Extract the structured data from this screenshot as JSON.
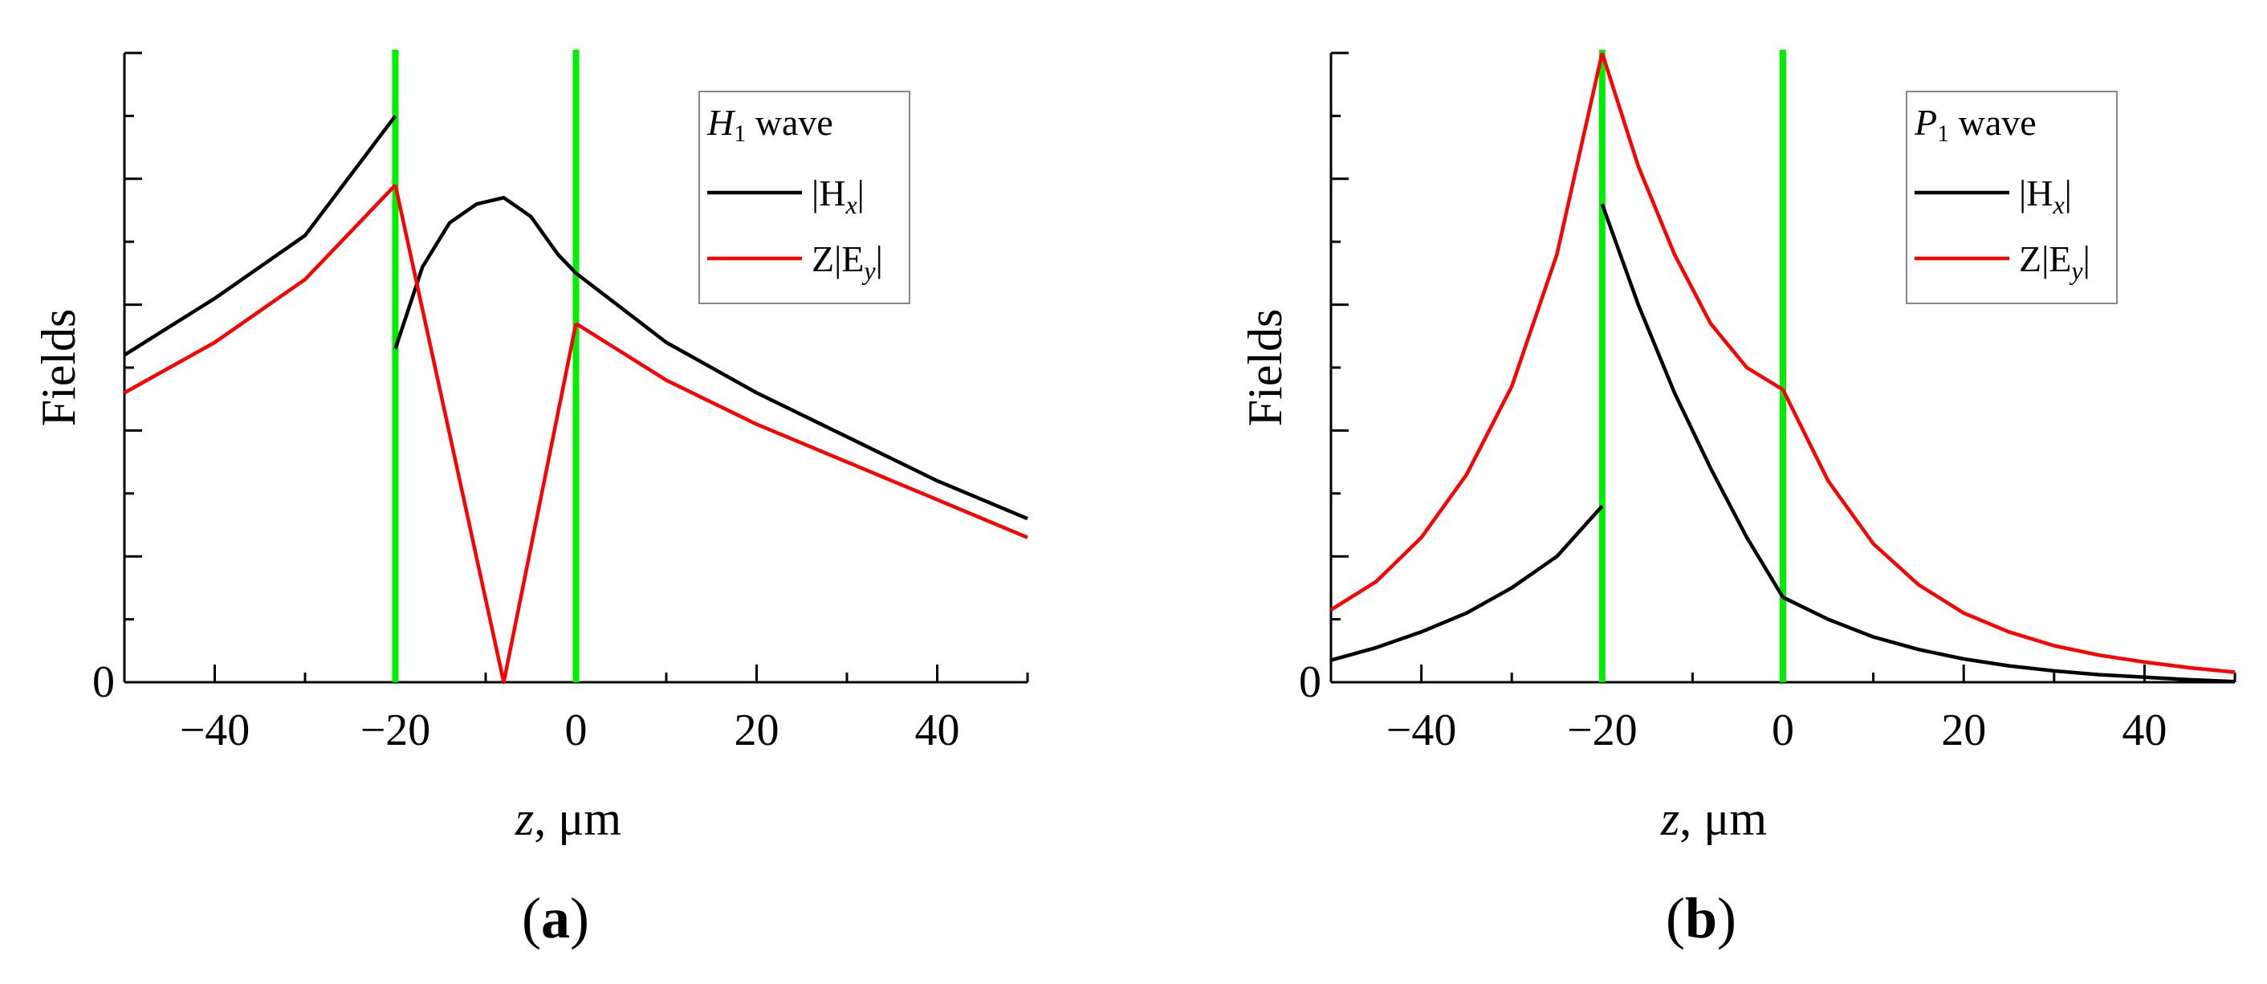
{
  "chart_data": [
    {
      "type": "line",
      "panel_label": "(a)",
      "panel_letter": "a",
      "xlabel_var": "z",
      "xlabel_unit": ", μm",
      "ylabel": "Fields",
      "xlim": [
        -50,
        50
      ],
      "ylim": [
        0,
        1
      ],
      "x_ticks": [
        -40,
        -20,
        0,
        20,
        40
      ],
      "x_tick_labels": [
        "−40",
        "−20",
        "0",
        "20",
        "40"
      ],
      "y_tick_labels": [
        "0"
      ],
      "legend": {
        "title_var": "H",
        "title_sub": "1",
        "title_rest": " wave",
        "position": "top-right",
        "entries": [
          {
            "pre": "|H",
            "sub": "x",
            "post": "|"
          },
          {
            "pre": "Z|E",
            "sub": "y",
            "post": "|"
          }
        ]
      },
      "interfaces": [
        -20,
        0
      ],
      "series": [
        {
          "name": "|Hx|",
          "color": "#000000",
          "segments": [
            {
              "x": [
                -50,
                -40,
                -30,
                -20
              ],
              "y": [
                0.52,
                0.61,
                0.71,
                0.9
              ]
            },
            {
              "x": [
                -20,
                -17,
                -14,
                -11,
                -8,
                -5,
                -2,
                0
              ],
              "y": [
                0.53,
                0.66,
                0.73,
                0.76,
                0.77,
                0.74,
                0.68,
                0.65
              ]
            },
            {
              "x": [
                0,
                10,
                20,
                30,
                40,
                50
              ],
              "y": [
                0.65,
                0.54,
                0.46,
                0.39,
                0.32,
                0.26
              ]
            }
          ]
        },
        {
          "name": "Z|Ey|",
          "color": "#ff0000",
          "segments": [
            {
              "x": [
                -50,
                -40,
                -30,
                -20
              ],
              "y": [
                0.46,
                0.54,
                0.64,
                0.79
              ]
            },
            {
              "x": [
                -20,
                -8,
                0
              ],
              "y": [
                0.79,
                0,
                0.57
              ]
            },
            {
              "x": [
                0,
                10,
                20,
                30,
                40,
                50
              ],
              "y": [
                0.57,
                0.48,
                0.41,
                0.35,
                0.29,
                0.23
              ]
            }
          ]
        }
      ]
    },
    {
      "type": "line",
      "panel_label": "(b)",
      "panel_letter": "b",
      "xlabel_var": "z",
      "xlabel_unit": ", μm",
      "ylabel": "Fields",
      "xlim": [
        -50,
        50
      ],
      "ylim": [
        0,
        1
      ],
      "x_ticks": [
        -40,
        -20,
        0,
        20,
        40
      ],
      "x_tick_labels": [
        "−40",
        "−20",
        "0",
        "20",
        "40"
      ],
      "y_tick_labels": [
        "0"
      ],
      "legend": {
        "title_var": "P",
        "title_sub": "1",
        "title_rest": " wave",
        "position": "top-right",
        "entries": [
          {
            "pre": "|H",
            "sub": "x",
            "post": "|"
          },
          {
            "pre": "Z|E",
            "sub": "y",
            "post": "|"
          }
        ]
      },
      "interfaces": [
        -20,
        0
      ],
      "series": [
        {
          "name": "|Hx|",
          "color": "#000000",
          "segments": [
            {
              "x": [
                -50,
                -45,
                -40,
                -35,
                -30,
                -25,
                -20
              ],
              "y": [
                0.035,
                0.055,
                0.08,
                0.11,
                0.15,
                0.2,
                0.28
              ]
            },
            {
              "x": [
                -20,
                -16,
                -12,
                -8,
                -4,
                0
              ],
              "y": [
                0.76,
                0.6,
                0.46,
                0.34,
                0.23,
                0.135
              ]
            },
            {
              "x": [
                0,
                5,
                10,
                15,
                20,
                25,
                30,
                35,
                40,
                45,
                50
              ],
              "y": [
                0.135,
                0.1,
                0.072,
                0.052,
                0.037,
                0.026,
                0.018,
                0.012,
                0.008,
                0.004,
                0.001
              ]
            }
          ]
        },
        {
          "name": "Z|Ey|",
          "color": "#ff0000",
          "segments": [
            {
              "x": [
                -50,
                -45,
                -40,
                -35,
                -30,
                -25,
                -20
              ],
              "y": [
                0.115,
                0.16,
                0.23,
                0.33,
                0.47,
                0.68,
                1.0
              ]
            },
            {
              "x": [
                -20,
                -16,
                -12,
                -8,
                -4,
                0
              ],
              "y": [
                1.0,
                0.82,
                0.68,
                0.57,
                0.5,
                0.465
              ]
            },
            {
              "x": [
                0,
                5,
                10,
                15,
                20,
                25,
                30,
                35,
                40,
                45,
                50
              ],
              "y": [
                0.465,
                0.32,
                0.22,
                0.155,
                0.11,
                0.08,
                0.058,
                0.043,
                0.032,
                0.023,
                0.016
              ]
            }
          ]
        }
      ]
    }
  ]
}
